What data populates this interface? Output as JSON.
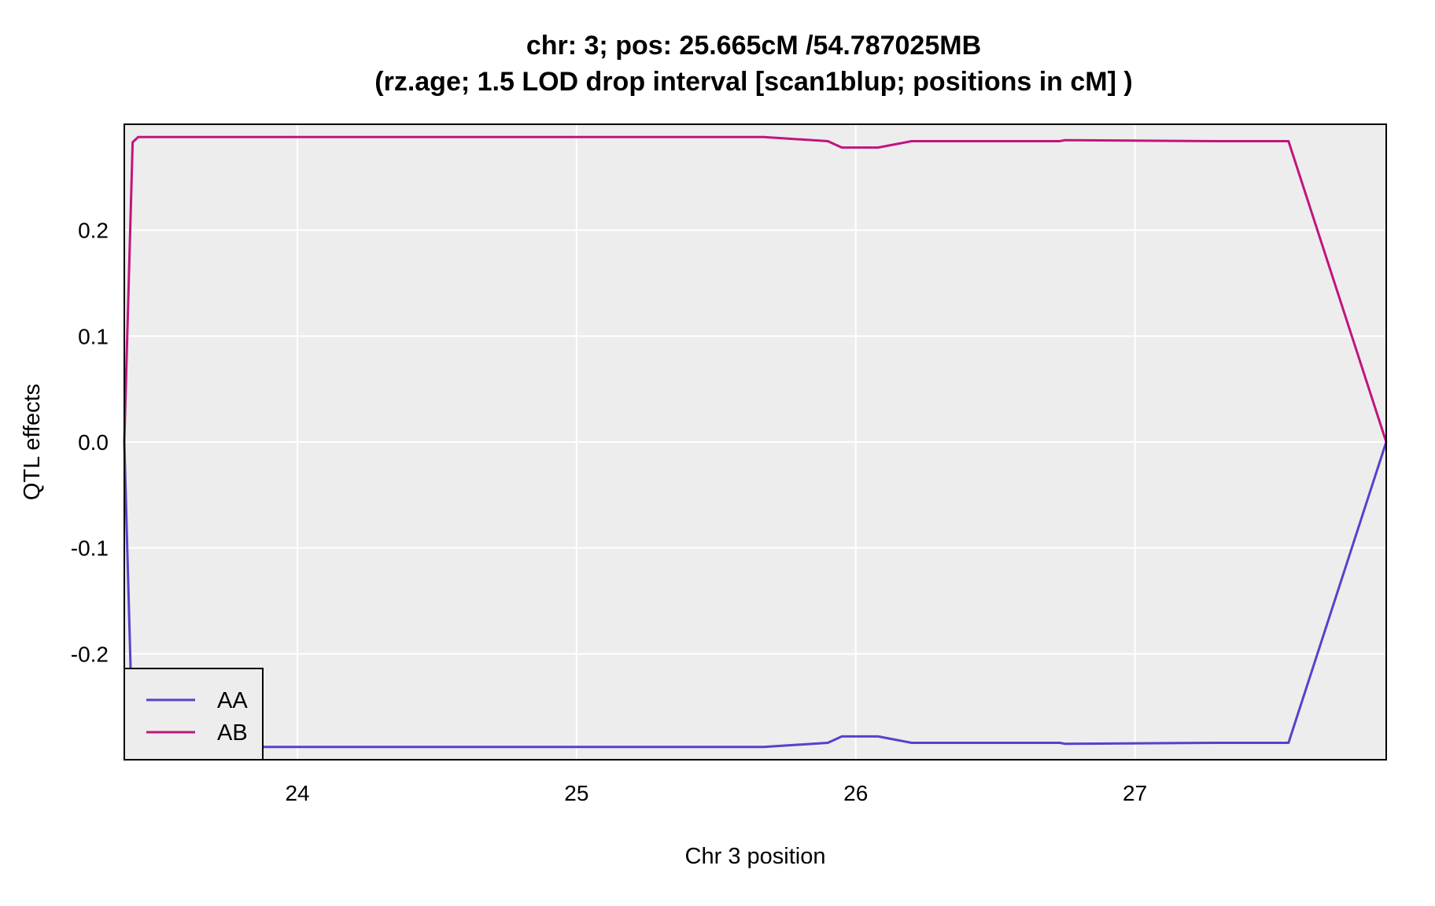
{
  "chart_data": {
    "type": "line",
    "title": "chr: 3; pos: 25.665cM /54.787025MB",
    "subtitle": "(rz.age; 1.5 LOD drop interval [scan1blup; positions in cM] )",
    "xlabel": "Chr 3 position",
    "ylabel": "QTL effects",
    "xlim": [
      23.38,
      27.9
    ],
    "ylim": [
      -0.3,
      0.3
    ],
    "x_ticks": [
      24,
      25,
      26,
      27
    ],
    "x_tick_labels": [
      "24",
      "25",
      "26",
      "27"
    ],
    "y_ticks": [
      -0.2,
      -0.1,
      0.0,
      0.1,
      0.2
    ],
    "y_tick_labels": [
      "-0.2",
      "-0.1",
      "0.0",
      "0.1",
      "0.2"
    ],
    "grid": true,
    "background": "#ededed",
    "legend_position": "bottom-left",
    "series": [
      {
        "name": "AA",
        "color": "#5b3fcb",
        "x": [
          23.38,
          23.41,
          23.43,
          23.7,
          24.5,
          25.1,
          25.67,
          25.9,
          25.95,
          26.08,
          26.2,
          26.73,
          26.75,
          27.3,
          27.55,
          27.9
        ],
        "y": [
          0.0,
          -0.283,
          -0.288,
          -0.288,
          -0.288,
          -0.288,
          -0.288,
          -0.284,
          -0.278,
          -0.278,
          -0.284,
          -0.284,
          -0.285,
          -0.284,
          -0.284,
          0.0
        ]
      },
      {
        "name": "AB",
        "color": "#c0157e",
        "x": [
          23.38,
          23.41,
          23.43,
          23.7,
          24.5,
          25.1,
          25.67,
          25.9,
          25.95,
          26.08,
          26.2,
          26.73,
          26.75,
          27.3,
          27.55,
          27.9
        ],
        "y": [
          0.0,
          0.283,
          0.288,
          0.288,
          0.288,
          0.288,
          0.288,
          0.284,
          0.278,
          0.278,
          0.284,
          0.284,
          0.285,
          0.284,
          0.284,
          0.0
        ]
      }
    ]
  }
}
